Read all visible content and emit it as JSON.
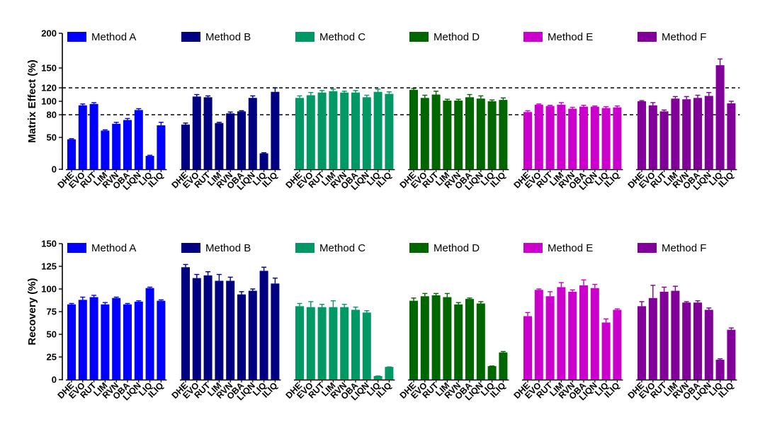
{
  "chart_data": [
    {
      "type": "bar",
      "ylabel": "Matrix Effect (%)",
      "ylim": [
        0,
        200
      ],
      "yscale": "piecewise-linear",
      "yticks": [
        0,
        50,
        80,
        100,
        120,
        150,
        200
      ],
      "ytick_labels": [
        "0",
        "50",
        "80",
        "100",
        "120",
        "150",
        "200"
      ],
      "reference_lines": [
        80,
        120
      ],
      "reference_line_style": "dashed",
      "categories": [
        "DHE",
        "EVO",
        "RUT",
        "LIM",
        "RVN",
        "OBA",
        "LIQN",
        "LIQ",
        "ILIQ"
      ],
      "legend_position": "top",
      "series": [
        {
          "name": "Method A",
          "color": "#0000ff",
          "values": [
            47,
            94,
            96,
            59,
            68,
            73,
            87,
            21,
            66
          ],
          "errors": [
            1,
            2,
            2,
            1,
            2,
            2,
            2,
            1,
            4
          ]
        },
        {
          "name": "Method B",
          "color": "#000080",
          "values": [
            67,
            107,
            106,
            69,
            82,
            85,
            105,
            25,
            114
          ],
          "errors": [
            2,
            3,
            2,
            1,
            2,
            1,
            3,
            1,
            6
          ]
        },
        {
          "name": "Method C",
          "color": "#009966",
          "values": [
            105,
            109,
            113,
            115,
            113,
            113,
            106,
            114,
            111
          ],
          "errors": [
            3,
            4,
            3,
            3,
            2,
            3,
            3,
            4,
            3
          ]
        },
        {
          "name": "Method D",
          "color": "#006600",
          "values": [
            117,
            105,
            110,
            101,
            101,
            106,
            104,
            100,
            102
          ],
          "errors": [
            2,
            4,
            5,
            2,
            2,
            4,
            4,
            2,
            3
          ]
        },
        {
          "name": "Method E",
          "color": "#cc00cc",
          "values": [
            84,
            95,
            93,
            95,
            89,
            92,
            92,
            90,
            91
          ],
          "errors": [
            2,
            1,
            1,
            3,
            2,
            2,
            1,
            2,
            2
          ]
        },
        {
          "name": "Method F",
          "color": "#800099",
          "values": [
            100,
            94,
            85,
            104,
            103,
            105,
            108,
            154,
            97
          ],
          "errors": [
            1,
            4,
            2,
            3,
            4,
            4,
            5,
            9,
            3
          ]
        }
      ]
    },
    {
      "type": "bar",
      "ylabel": "Recovery (%)",
      "ylim": [
        0,
        150
      ],
      "yticks": [
        0,
        25,
        50,
        75,
        100,
        125,
        150
      ],
      "ytick_labels": [
        "0",
        "25",
        "50",
        "75",
        "100",
        "125",
        "150"
      ],
      "categories": [
        "DHE",
        "EVO",
        "RUT",
        "LIM",
        "RVN",
        "OBA",
        "LIQN",
        "LIQ",
        "ILIQ"
      ],
      "legend_position": "top",
      "series": [
        {
          "name": "Method A",
          "color": "#0000ff",
          "values": [
            83,
            88,
            91,
            83,
            90,
            83,
            86,
            101,
            87
          ],
          "errors": [
            1,
            3,
            2,
            2,
            1,
            1,
            1,
            1,
            1
          ]
        },
        {
          "name": "Method B",
          "color": "#000080",
          "values": [
            124,
            112,
            115,
            109,
            109,
            94,
            98,
            120,
            106
          ],
          "errors": [
            3,
            4,
            4,
            7,
            4,
            3,
            2,
            4,
            6
          ]
        },
        {
          "name": "Method C",
          "color": "#009966",
          "values": [
            81,
            80,
            80,
            80,
            80,
            77,
            74,
            4,
            14
          ],
          "errors": [
            3,
            6,
            3,
            7,
            3,
            3,
            2,
            0,
            0
          ]
        },
        {
          "name": "Method D",
          "color": "#006600",
          "values": [
            87,
            92,
            93,
            91,
            83,
            89,
            84,
            15,
            30
          ],
          "errors": [
            3,
            3,
            2,
            4,
            2,
            1,
            2,
            0,
            1
          ]
        },
        {
          "name": "Method E",
          "color": "#cc00cc",
          "values": [
            70,
            99,
            92,
            102,
            97,
            104,
            101,
            63,
            77
          ],
          "errors": [
            4,
            1,
            5,
            5,
            2,
            6,
            4,
            4,
            1
          ]
        },
        {
          "name": "Method F",
          "color": "#800099",
          "values": [
            81,
            90,
            97,
            98,
            85,
            85,
            77,
            22,
            55
          ],
          "errors": [
            5,
            14,
            5,
            5,
            1,
            2,
            2,
            1,
            2
          ]
        }
      ]
    }
  ]
}
